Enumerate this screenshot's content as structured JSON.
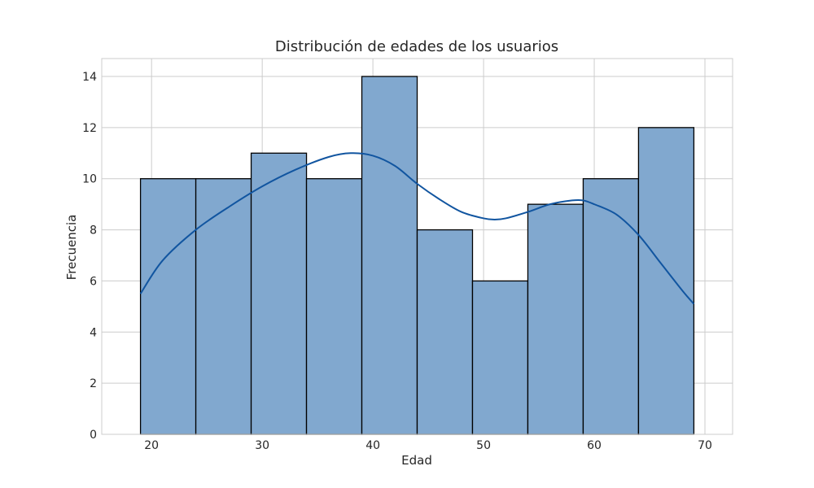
{
  "chart_data": {
    "type": "bar",
    "title": "Distribución de edades de los usuarios",
    "xlabel": "Edad",
    "ylabel": "Frecuencia",
    "xlim": [
      15.5,
      72.5
    ],
    "ylim": [
      0,
      14.7
    ],
    "xticks": [
      20,
      30,
      40,
      50,
      60,
      70
    ],
    "yticks": [
      0,
      2,
      4,
      6,
      8,
      10,
      12,
      14
    ],
    "grid": true,
    "bins": [
      {
        "start": 19,
        "end": 24,
        "count": 10
      },
      {
        "start": 24,
        "end": 29,
        "count": 10
      },
      {
        "start": 29,
        "end": 34,
        "count": 11
      },
      {
        "start": 34,
        "end": 39,
        "count": 10
      },
      {
        "start": 39,
        "end": 44,
        "count": 14
      },
      {
        "start": 44,
        "end": 49,
        "count": 8
      },
      {
        "start": 49,
        "end": 54,
        "count": 6
      },
      {
        "start": 54,
        "end": 59,
        "count": 9
      },
      {
        "start": 59,
        "end": 64,
        "count": 10
      },
      {
        "start": 64,
        "end": 69,
        "count": 12
      }
    ],
    "kde": {
      "x": [
        19,
        21,
        24,
        27,
        30,
        33,
        36,
        38,
        40,
        42,
        44,
        46,
        48,
        50,
        51,
        52,
        54,
        56,
        58,
        59,
        60,
        62,
        64,
        66,
        68,
        69
      ],
      "y": [
        5.5,
        6.8,
        8.0,
        8.9,
        9.7,
        10.35,
        10.85,
        11.0,
        10.9,
        10.5,
        9.8,
        9.2,
        8.7,
        8.45,
        8.4,
        8.45,
        8.7,
        9.0,
        9.15,
        9.15,
        9.0,
        8.6,
        7.8,
        6.7,
        5.6,
        5.1
      ]
    },
    "colors": {
      "bar_fill": "#81a8cf",
      "bar_edge": "#000000",
      "kde_line": "#1155a0",
      "grid": "#cccccc",
      "frame": "#cccccc"
    }
  }
}
